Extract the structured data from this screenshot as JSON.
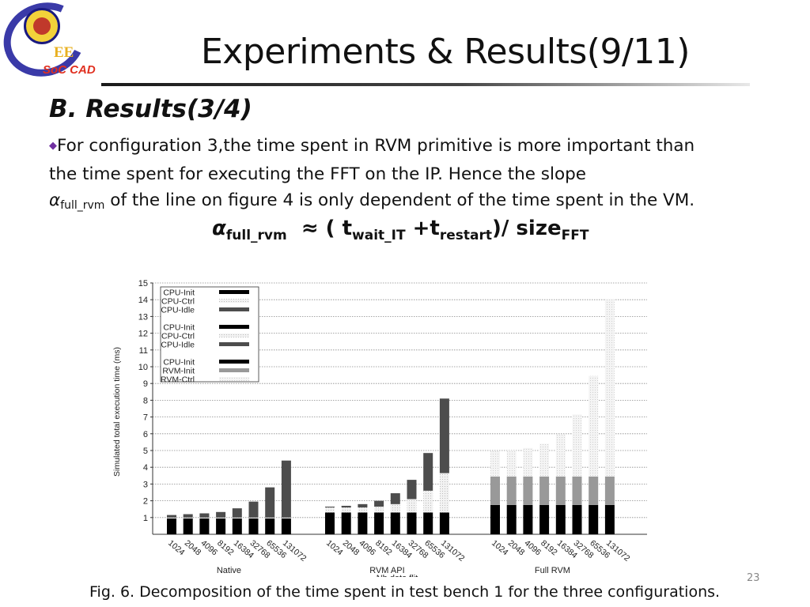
{
  "logo": {
    "abbr": "EE",
    "name": "SoC CAD"
  },
  "title": "Experiments & Results(9/11)",
  "subtitle": "B. Results(3/4)",
  "body": {
    "line1": "For configuration 3,the time spent in RVM primitive is more important than",
    "line2": "the time spent for executing the FFT on the IP. Hence the slope",
    "alpha": "α",
    "alpha_sub": "full_rvm",
    "line3_rest": " of the line on figure 4 is only dependent of the time spent in the VM."
  },
  "formula": {
    "alpha": "α",
    "alpha_sub": "full_rvm",
    "part1": "  ≈ ( t",
    "sub1": "wait_IT",
    "part2": " +t",
    "sub2": "restart",
    "part3": ")/ size",
    "sub3": "FFT"
  },
  "chart_data": {
    "type": "bar",
    "stacked": true,
    "ylabel": "Simulated total execution time (ms)",
    "xlabel": "Nb data flit",
    "ylim": [
      0,
      15
    ],
    "yticks": [
      1,
      2,
      3,
      4,
      5,
      6,
      7,
      8,
      9,
      10,
      11,
      12,
      13,
      14,
      15
    ],
    "grid": true,
    "legend_position": "top-left",
    "legend_groups": [
      [
        {
          "name": "CPU-Init",
          "color": "#000000"
        },
        {
          "name": "CPU-Ctrl",
          "color": "#dddddd"
        },
        {
          "name": "CPU-Idle",
          "color": "#4d4d4d"
        }
      ],
      [
        {
          "name": "CPU-Init",
          "color": "#000000"
        },
        {
          "name": "CPU-Ctrl",
          "color": "#dddddd"
        },
        {
          "name": "CPU-Idle",
          "color": "#4d4d4d"
        }
      ],
      [
        {
          "name": "CPU-Init",
          "color": "#000000"
        },
        {
          "name": "RVM-Init",
          "color": "#999999"
        },
        {
          "name": "RVM-Ctrl",
          "color": "#e6e6e6"
        }
      ]
    ],
    "groups": [
      {
        "name": "Native",
        "categories": [
          "1024",
          "2048",
          "4096",
          "8192",
          "16384",
          "32768",
          "65536",
          "131072"
        ],
        "series": [
          {
            "name": "CPU-Init",
            "color": "#000000",
            "values": [
              0.95,
              0.95,
              0.95,
              0.95,
              0.95,
              0.95,
              0.95,
              0.95
            ]
          },
          {
            "name": "CPU-Ctrl",
            "color": "#dddddd",
            "values": [
              0.05,
              0.05,
              0.05,
              0.05,
              0.05,
              0.05,
              0.05,
              0.05
            ]
          },
          {
            "name": "CPU-Idle",
            "color": "#4d4d4d",
            "values": [
              0.15,
              0.2,
              0.25,
              0.33,
              0.55,
              0.95,
              1.8,
              3.4
            ]
          }
        ]
      },
      {
        "name": "RVM API",
        "categories": [
          "1024",
          "2048",
          "4096",
          "8192",
          "16384",
          "32768",
          "65536",
          "131072"
        ],
        "series": [
          {
            "name": "CPU-Init",
            "color": "#000000",
            "values": [
              1.3,
              1.3,
              1.3,
              1.3,
              1.3,
              1.3,
              1.3,
              1.3
            ]
          },
          {
            "name": "CPU-Ctrl",
            "color": "#dddddd",
            "values": [
              0.3,
              0.3,
              0.3,
              0.35,
              0.5,
              0.8,
              1.3,
              2.35
            ]
          },
          {
            "name": "CPU-Idle",
            "color": "#4d4d4d",
            "values": [
              0.05,
              0.1,
              0.2,
              0.35,
              0.65,
              1.15,
              2.25,
              4.45
            ]
          }
        ]
      },
      {
        "name": "Full RVM",
        "categories": [
          "1024",
          "2048",
          "4096",
          "8192",
          "16384",
          "32768",
          "65536",
          "131072"
        ],
        "series": [
          {
            "name": "CPU-Init",
            "color": "#000000",
            "values": [
              1.75,
              1.75,
              1.75,
              1.75,
              1.75,
              1.75,
              1.75,
              1.75
            ]
          },
          {
            "name": "RVM-Init",
            "color": "#999999",
            "values": [
              1.7,
              1.7,
              1.7,
              1.7,
              1.7,
              1.7,
              1.7,
              1.7
            ]
          },
          {
            "name": "RVM-Ctrl",
            "color": "#e6e6e6",
            "values": [
              1.5,
              1.55,
              1.7,
              1.95,
              2.5,
              3.7,
              6.0,
              10.6
            ]
          }
        ]
      }
    ]
  },
  "caption": "Fig. 6. Decomposition of the time spent in test bench 1 for the three configurations.",
  "page_number": "23"
}
